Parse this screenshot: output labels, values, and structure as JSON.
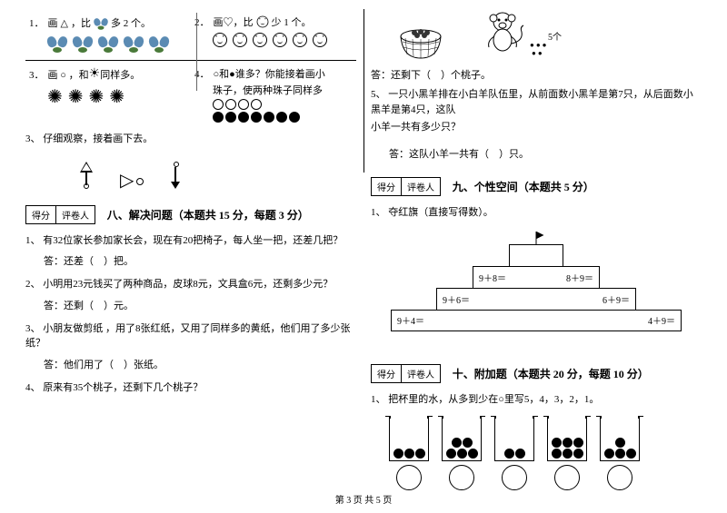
{
  "left": {
    "q1": {
      "num": "1．",
      "text_a": "画",
      "text_b": "，比",
      "text_c": "多 2 个。",
      "butterfly_count": 5
    },
    "q2": {
      "num": "2．",
      "text_a": "画♡，比",
      "text_b": "少 1 个。",
      "smiley_count": 6
    },
    "q3": {
      "num": "3．",
      "text_a": "画 ○ ，和",
      "text_b": "同样多。",
      "sun_count": 4
    },
    "q4": {
      "num": "4．",
      "text_a": "○和●谁多？你能接着画小",
      "text_b": "珠子，使两种珠子同样多",
      "white_dots": 4,
      "black_dots": 7
    },
    "q_shapes": {
      "num": "3、",
      "text": "仔细观察，接着画下去。"
    },
    "section8": {
      "score": "得分",
      "grader": "评卷人",
      "title": "八、解决问题（本题共 15 分，每题 3 分）"
    },
    "s8q1": {
      "num": "1、",
      "text": "有32位家长参加家长会，现在有20把椅子，每人坐一把，还差几把？",
      "ans": "答：还差（　）把。"
    },
    "s8q2": {
      "num": "2、",
      "text": "小明用23元钱买了两种商品，皮球8元，文具盒6元，还剩多少元？",
      "ans": "答：还剩（　）元。"
    },
    "s8q3": {
      "num": "3、",
      "text": "小朋友做剪纸 ，用了8张红纸，又用了同样多的黄纸，他们用了多少张纸？",
      "ans": "答：他们用了（　）张纸。"
    },
    "s8q4": {
      "num": "4、",
      "text": "原来有35个桃子，还剩下几个桃子？"
    }
  },
  "right": {
    "peach_label": "5个",
    "peach_ans": "答：还剩下（　）个桃子。",
    "q5": {
      "num": "5、",
      "text": "一只小黑羊排在小白羊队伍里，从前面数小黑羊是第7只，从后面数小黑羊是第4只，这队",
      "text2": "小羊一共有多少只？",
      "ans": "答：这队小羊一共有（　）只。"
    },
    "section9": {
      "score": "得分",
      "grader": "评卷人",
      "title": "九、个性空间（本题共 5 分）"
    },
    "s9q1": {
      "num": "1、",
      "text": "夺红旗（直接写得数）。"
    },
    "pyramid": {
      "top_left": "9＋8＝",
      "top_right": "8＋9＝",
      "mid_left": "9＋6＝",
      "mid_right": "6＋9＝",
      "bot_left": "9＋4＝",
      "bot_right": "4＋9＝"
    },
    "section10": {
      "score": "得分",
      "grader": "评卷人",
      "title": "十、附加题（本题共 20 分，每题 10 分）"
    },
    "s10q1": {
      "num": "1、",
      "text": "把杯里的水，从多到少在○里写5，4，3，2，1。"
    },
    "beaker_balls": [
      3,
      5,
      2,
      6,
      4
    ]
  },
  "footer": "第 3 页 共 5 页"
}
